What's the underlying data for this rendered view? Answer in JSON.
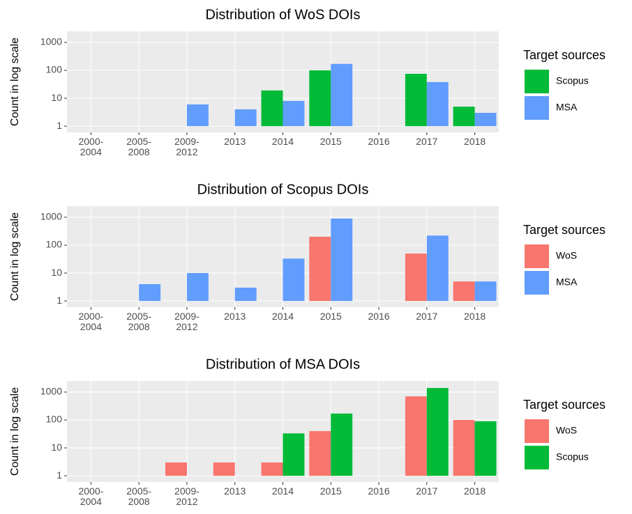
{
  "chart_data": [
    {
      "type": "bar",
      "title": "Distribution of WoS DOIs",
      "y_label": "Count in log scale",
      "legend_title": "Target sources",
      "categories": [
        "2000-\n2004",
        "2005-\n2008",
        "2009-\n2012",
        "2013",
        "2014",
        "2015",
        "2016",
        "2017",
        "2018"
      ],
      "series": [
        {
          "name": "Scopus",
          "color": "#00ba38",
          "values": [
            null,
            null,
            null,
            null,
            19,
            100,
            null,
            75,
            5
          ]
        },
        {
          "name": "MSA",
          "color": "#619cff",
          "values": [
            null,
            null,
            6,
            4,
            8,
            170,
            null,
            38,
            3
          ]
        }
      ],
      "log_scale": true,
      "ylim": [
        0.6,
        2500
      ],
      "yticks": [
        1,
        10,
        100,
        1000
      ],
      "grid": true
    },
    {
      "type": "bar",
      "title": "Distribution of Scopus DOIs",
      "y_label": "Count in log scale",
      "legend_title": "Target sources",
      "categories": [
        "2000-\n2004",
        "2005-\n2008",
        "2009-\n2012",
        "2013",
        "2014",
        "2015",
        "2016",
        "2017",
        "2018"
      ],
      "series": [
        {
          "name": "WoS",
          "color": "#f8766d",
          "values": [
            null,
            null,
            null,
            null,
            null,
            200,
            null,
            50,
            5
          ]
        },
        {
          "name": "MSA",
          "color": "#619cff",
          "values": [
            null,
            4,
            10,
            3,
            33,
            900,
            null,
            220,
            5
          ]
        }
      ],
      "log_scale": true,
      "ylim": [
        0.6,
        2500
      ],
      "yticks": [
        1,
        10,
        100,
        1000
      ],
      "grid": true
    },
    {
      "type": "bar",
      "title": "Distribution of MSA DOIs",
      "y_label": "Count in log scale",
      "legend_title": "Target sources",
      "categories": [
        "2000-\n2004",
        "2005-\n2008",
        "2009-\n2012",
        "2013",
        "2014",
        "2015",
        "2016",
        "2017",
        "2018"
      ],
      "series": [
        {
          "name": "WoS",
          "color": "#f8766d",
          "values": [
            null,
            null,
            3,
            3,
            3,
            40,
            null,
            700,
            100
          ]
        },
        {
          "name": "Scopus",
          "color": "#00ba38",
          "values": [
            null,
            null,
            null,
            null,
            33,
            170,
            null,
            1400,
            90
          ]
        }
      ],
      "log_scale": true,
      "ylim": [
        0.6,
        2500
      ],
      "yticks": [
        1,
        10,
        100,
        1000
      ],
      "grid": true
    }
  ]
}
